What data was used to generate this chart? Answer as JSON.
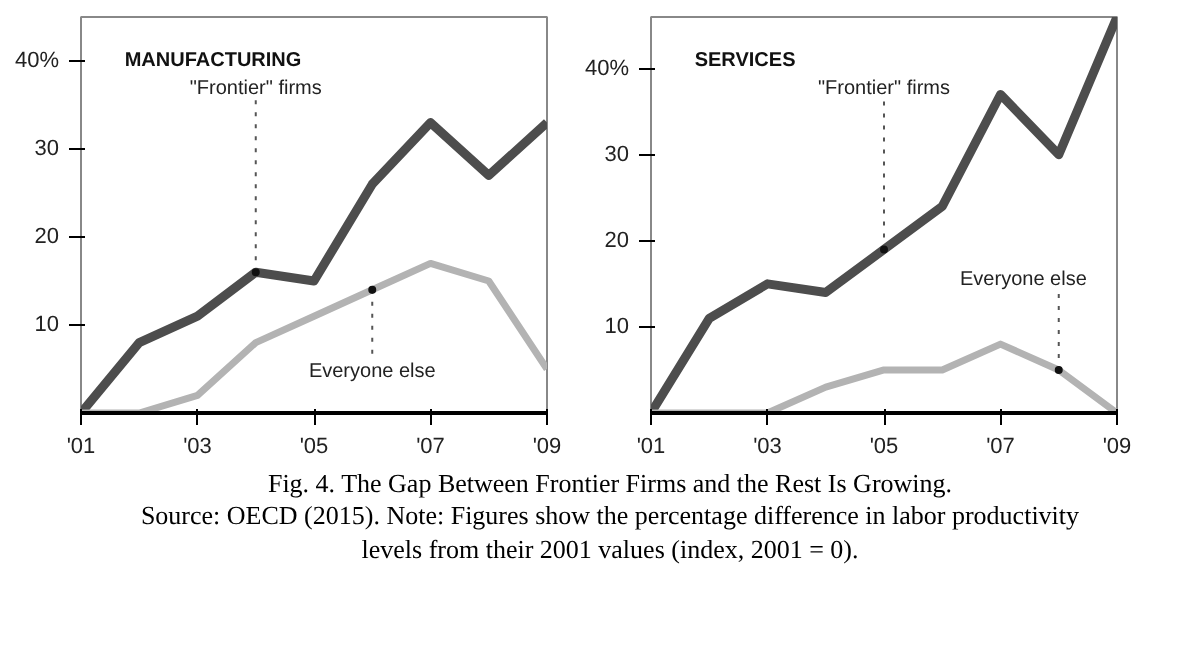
{
  "chart_data": [
    {
      "type": "line",
      "title": "MANUFACTURING",
      "x": [
        2001,
        2002,
        2003,
        2004,
        2005,
        2006,
        2007,
        2008,
        2009
      ],
      "series": [
        {
          "color": "#4d4d4d",
          "values": [
            0,
            8,
            11,
            16,
            15,
            26,
            33,
            27,
            33
          ]
        },
        {
          "color": "#b3b3b3",
          "values": [
            0,
            0,
            2,
            8,
            11,
            14,
            17,
            15,
            5
          ]
        }
      ],
      "xlim": [
        2001,
        2009
      ],
      "ylim": [
        0,
        45
      ],
      "xticks": [
        {
          "value": 2001,
          "label": "'01"
        },
        {
          "value": 2003,
          "label": "'03"
        },
        {
          "value": 2005,
          "label": "'05"
        },
        {
          "value": 2007,
          "label": "'07"
        },
        {
          "value": 2009,
          "label": "'09"
        }
      ],
      "yticks": [
        10,
        20,
        30,
        {
          "value": 40,
          "label": "40%"
        }
      ],
      "annotations": [
        {
          "text": "\"Frontier\" firms",
          "x": 2004,
          "y": 16
        },
        {
          "text": "Everyone else",
          "x": 2006,
          "y": 14
        }
      ],
      "grid": false,
      "marker": "none",
      "line_style": "solid"
    },
    {
      "type": "line",
      "title": "SERVICES",
      "x": [
        2001,
        2002,
        2003,
        2004,
        2005,
        2006,
        2007,
        2008,
        2009
      ],
      "series": [
        {
          "color": "#4d4d4d",
          "values": [
            0,
            11,
            15,
            14,
            19,
            24,
            37,
            30,
            46
          ]
        },
        {
          "color": "#b3b3b3",
          "values": [
            0,
            0,
            0,
            3,
            5,
            5,
            8,
            5,
            0
          ]
        }
      ],
      "xlim": [
        2001,
        2009
      ],
      "ylim": [
        0,
        46
      ],
      "xticks": [
        {
          "value": 2001,
          "label": "'01"
        },
        {
          "value": 2003,
          "label": "'03"
        },
        {
          "value": 2005,
          "label": "'05"
        },
        {
          "value": 2007,
          "label": "'07"
        },
        {
          "value": 2009,
          "label": "'09"
        }
      ],
      "yticks": [
        10,
        20,
        30,
        {
          "value": 40,
          "label": "40%"
        }
      ],
      "annotations": [
        {
          "text": "\"Frontier\" firms",
          "x": 2005,
          "y": 19
        },
        {
          "text": "Everyone else",
          "x": 2008,
          "y": 5
        }
      ],
      "grid": false,
      "marker": "none",
      "line_style": "solid"
    },
    {
      "type": "other",
      "title": "Fig. 4. The Gap Between Frontier Firms and the Rest Is Growing.",
      "annotations": [
        "Source: OECD (2015). Note: Figures show the percentage difference in labor productivity levels from their 2001 values (index, 2001 = 0)."
      ]
    }
  ]
}
